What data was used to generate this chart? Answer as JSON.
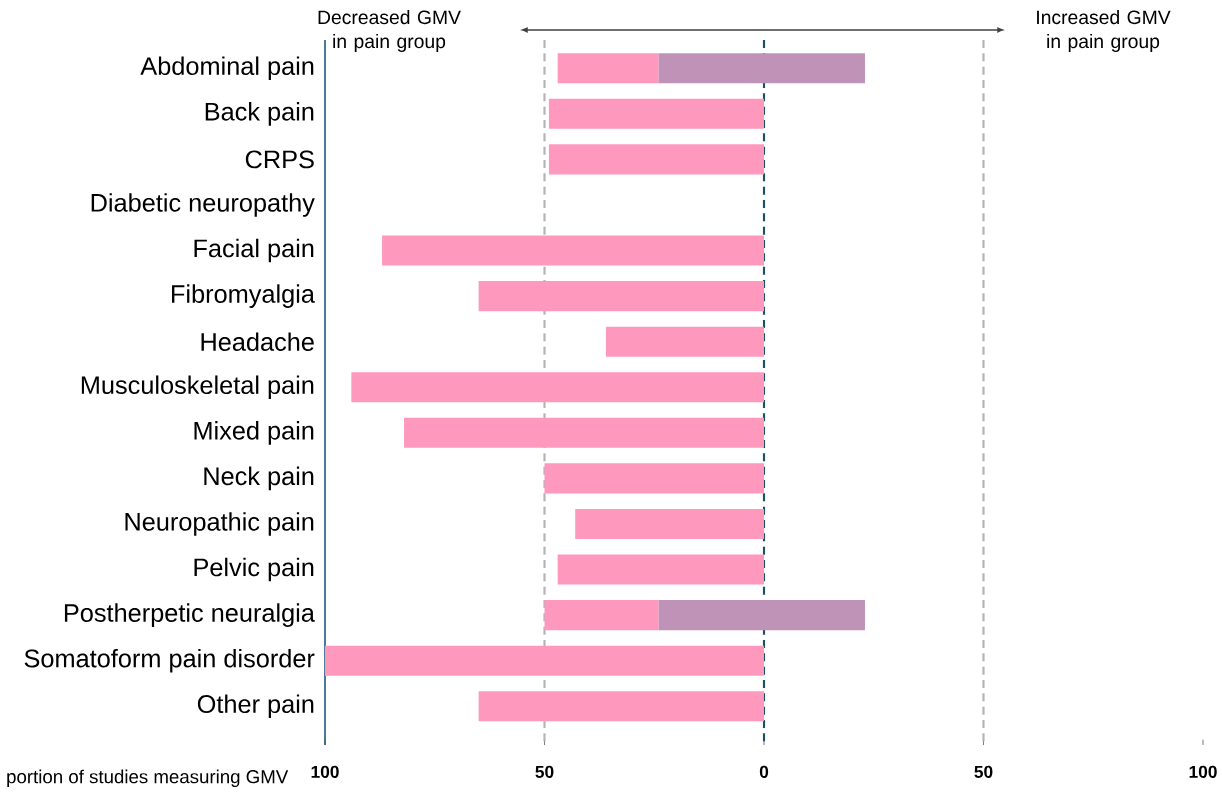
{
  "chart_data": {
    "type": "bar",
    "orientation": "horizontal",
    "categories": [
      "Abdominal pain",
      "Back pain",
      "CRPS",
      "Diabetic neuropathy",
      "Facial pain",
      "Fibromyalgia",
      "Headache",
      "Musculoskeletal pain",
      "Mixed pain",
      "Neck pain",
      "Neuropathic pain",
      "Pelvic pain",
      "Postherpetic neuralgia",
      "Somatoform pain disorder",
      "Other pain"
    ],
    "series": [
      {
        "color": "#fe99bd",
        "values": [
          -23,
          -49,
          -49,
          null,
          -87,
          -65,
          -36,
          -94,
          -82,
          -50,
          -43,
          -47,
          -26,
          -100,
          -65
        ],
        "base": [
          -24,
          0,
          0,
          null,
          0,
          0,
          0,
          0,
          0,
          0,
          0,
          0,
          -24,
          0,
          0
        ]
      },
      {
        "color": "#bf93b8",
        "values": [
          47,
          null,
          null,
          null,
          null,
          null,
          null,
          null,
          null,
          null,
          null,
          null,
          47,
          null,
          null
        ],
        "base": [
          -24,
          null,
          null,
          null,
          null,
          null,
          null,
          null,
          null,
          null,
          null,
          null,
          -24,
          null,
          null
        ]
      }
    ],
    "xlim": [
      -100,
      100
    ],
    "xticks": [
      {
        "value": -100,
        "label": "100"
      },
      {
        "value": -50,
        "label": "50"
      },
      0,
      50,
      100
    ],
    "xlabel": "portion of studies measuring GMV",
    "ref_lines": [
      {
        "axis": "x",
        "value": -50,
        "color": "#b3b3b3",
        "line_style": "dashed"
      },
      {
        "axis": "x",
        "value": 50,
        "color": "#b3b3b3",
        "line_style": "dashed"
      },
      {
        "axis": "x",
        "value": 0,
        "color": "#1b4f66",
        "line_style": "dashed"
      }
    ],
    "annotations": [
      "Decreased GMV in pain group",
      "Increased GMV in pain group"
    ]
  }
}
